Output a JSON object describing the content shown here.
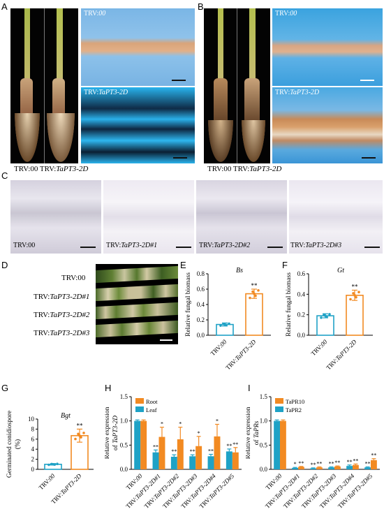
{
  "panels": {
    "A": "A",
    "B": "B",
    "C": "C",
    "D": "D",
    "E": "E",
    "F": "F",
    "G": "G",
    "H": "H",
    "I": "I"
  },
  "captions": {
    "trv00": "TRV:00",
    "trv": "TRV:",
    "gene": "TaPT3-2D",
    "rep1": "TaPT3-2D#1",
    "rep2": "TaPT3-2D#2",
    "rep3": "TaPT3-2D#3"
  },
  "colors": {
    "trv00": "#1fa2c6",
    "silenced": "#f28a22",
    "root": "#f28a22",
    "leaf": "#1fa2c6"
  },
  "chart_data": [
    {
      "panel": "E",
      "type": "bar",
      "title": "Bs",
      "ylabel": "Relative fungal biomass",
      "categories": [
        "TRV:00",
        "TRV:TaPT3-2D"
      ],
      "values": [
        0.14,
        0.54
      ],
      "errors": [
        0.02,
        0.06
      ],
      "ylim": [
        0,
        0.8
      ],
      "yticks": [
        "0.0",
        "0.2",
        "0.4",
        "0.6",
        "0.8"
      ],
      "sig": [
        "",
        "**"
      ]
    },
    {
      "panel": "F",
      "type": "bar",
      "title": "Gt",
      "ylabel": "Relative fungal biomass",
      "categories": [
        "TRV:00",
        "TRV:TaPT3-2D"
      ],
      "values": [
        0.19,
        0.39
      ],
      "errors": [
        0.02,
        0.05
      ],
      "ylim": [
        0,
        0.6
      ],
      "yticks": [
        "0.0",
        "0.2",
        "0.4",
        "0.6"
      ],
      "sig": [
        "",
        "**"
      ]
    },
    {
      "panel": "G",
      "type": "bar",
      "title": "Bgt",
      "ylabel": "Germinated conidiospore (%)",
      "categories": [
        "TRV:00",
        "TRV:TaPT3-2D"
      ],
      "values": [
        1.0,
        6.7
      ],
      "errors": [
        0.15,
        1.3
      ],
      "ylim": [
        0,
        10
      ],
      "yticks": [
        "0",
        "2",
        "4",
        "6",
        "8",
        "10"
      ],
      "sig": [
        "",
        "**"
      ]
    },
    {
      "panel": "H",
      "type": "bar",
      "ylabel": "Relative expression of TaPT3-2D",
      "categories": [
        "TRV:00",
        "TRV:TaPT3-2D#1",
        "TRV:TaPT3-2D#2",
        "TRV:TaPT3-2D#3",
        "TRV:TaPT3-2D#4",
        "TRV:TaPT3-2D#5"
      ],
      "series": [
        {
          "name": "Root",
          "values": [
            1.0,
            0.67,
            0.62,
            0.48,
            0.68,
            0.35
          ],
          "errors": [
            0.02,
            0.2,
            0.25,
            0.2,
            0.25,
            0.1
          ],
          "sig": [
            "",
            "*",
            "*",
            "*",
            "*",
            "**"
          ]
        },
        {
          "name": "Leaf",
          "values": [
            1.0,
            0.35,
            0.26,
            0.27,
            0.27,
            0.37
          ],
          "errors": [
            0.02,
            0.05,
            0.04,
            0.03,
            0.04,
            0.05
          ],
          "sig": [
            "",
            "**",
            "**",
            "**",
            "**",
            "**"
          ]
        }
      ],
      "ylim": [
        0,
        1.5
      ],
      "yticks": [
        "0.0",
        "0.5",
        "1.0",
        "1.5"
      ]
    },
    {
      "panel": "I",
      "type": "bar",
      "ylabel": "Relative expression of TaPRs",
      "categories": [
        "TRV:00",
        "TRV:TaPT3-2D#1",
        "TRV:TaPT3-2D#2",
        "TRV:TaPT3-2D#3",
        "TRV:TaPT3-2D#4",
        "TRV:TaPT3-2D#5"
      ],
      "series": [
        {
          "name": "TaPR10",
          "values": [
            1.0,
            0.05,
            0.04,
            0.06,
            0.09,
            0.19
          ],
          "errors": [
            0.02,
            0.01,
            0.01,
            0.01,
            0.02,
            0.03
          ],
          "sig": [
            "",
            "**",
            "**",
            "**",
            "**",
            "**"
          ]
        },
        {
          "name": "TaPR2",
          "values": [
            1.0,
            0.03,
            0.02,
            0.04,
            0.07,
            0.04
          ],
          "errors": [
            0.02,
            0.01,
            0.01,
            0.01,
            0.02,
            0.01
          ],
          "sig": [
            "",
            "*",
            "**",
            "**",
            "**",
            "**"
          ]
        }
      ],
      "ylim": [
        0,
        1.5
      ],
      "yticks": [
        "0.0",
        "0.5",
        "1.0",
        "1.5"
      ]
    }
  ]
}
